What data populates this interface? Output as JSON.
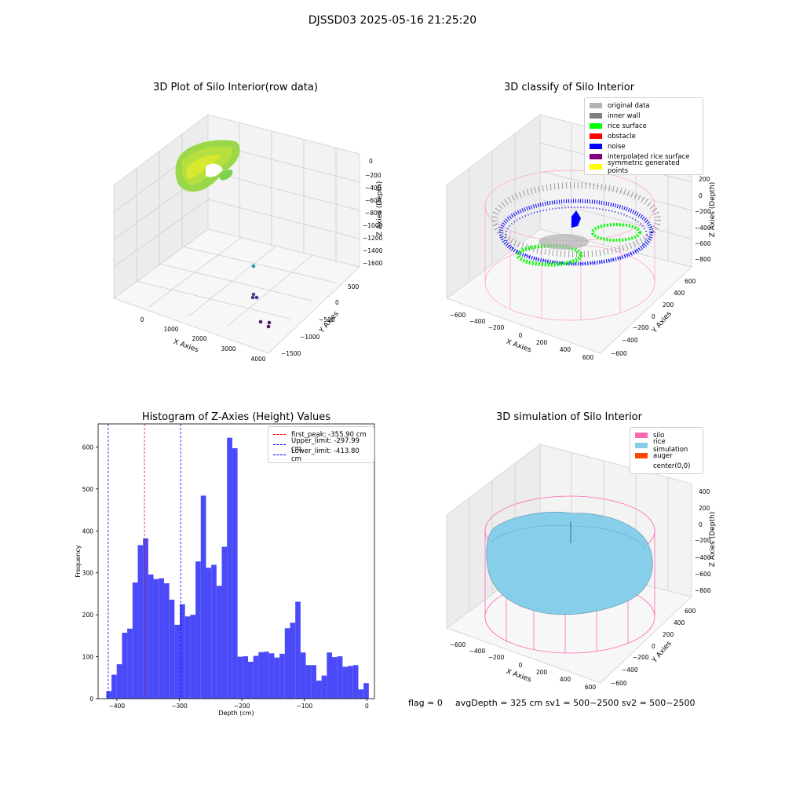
{
  "suptitle": "DJSSD03 2025-05-16 21:25:20",
  "panels": {
    "raw": {
      "title": "3D Plot of Silo Interior(row data)",
      "xlabel": "X Axies",
      "ylabel": "Y Axies",
      "zlabel": "Z Axies (Depth)",
      "xticks": [
        "0",
        "1000",
        "2000",
        "3000",
        "4000"
      ],
      "yticks": [
        "500",
        "0",
        "−500",
        "−1000",
        "−1500"
      ],
      "zticks": [
        "0",
        "−200",
        "−400",
        "−600",
        "−800",
        "−1000",
        "−1200",
        "−1400",
        "−1600"
      ]
    },
    "classify": {
      "title": "3D classify of Silo Interior",
      "xlabel": "X Axies",
      "ylabel": "Y Axies",
      "zlabel": "Z Axies (Depth)",
      "xticks": [
        "−600",
        "−400",
        "−200",
        "0",
        "200",
        "400",
        "600"
      ],
      "yticks": [
        "600",
        "400",
        "200",
        "0",
        "−200",
        "−400",
        "−600"
      ],
      "zticks": [
        "200",
        "0",
        "−200",
        "−400",
        "−600",
        "−800"
      ],
      "legend": [
        {
          "label": "original data",
          "color": "#b3b3b3"
        },
        {
          "label": "inner wall",
          "color": "#808080"
        },
        {
          "label": "rice surface",
          "color": "#00ff00"
        },
        {
          "label": "obstacle",
          "color": "#ff0000"
        },
        {
          "label": "noise",
          "color": "#0000ff"
        },
        {
          "label": "interpolated rice surface",
          "color": "#800080"
        },
        {
          "label": "symmetric generated points",
          "color": "#ffff00"
        }
      ]
    },
    "simulation": {
      "title": "3D simulation of Silo Interior",
      "xlabel": "X Axies",
      "ylabel": "Y Axies",
      "zlabel": "Z Axies (Depth)",
      "xticks": [
        "−600",
        "−400",
        "−200",
        "0",
        "200",
        "400",
        "600"
      ],
      "yticks": [
        "600",
        "400",
        "200",
        "0",
        "−200",
        "−400",
        "−600"
      ],
      "zticks": [
        "400",
        "200",
        "0",
        "−200",
        "−400",
        "−600",
        "−800"
      ],
      "legend": [
        {
          "label": "silo",
          "color": "#ff69b4"
        },
        {
          "label": "rice simulation",
          "color": "#87ceeb"
        },
        {
          "label": "auger",
          "color": "#ff4500"
        },
        {
          "label": "center(0,0)",
          "color": "#ffffff"
        }
      ]
    }
  },
  "footer": {
    "flag": "flag = 0",
    "info": "avgDepth = 325 cm  sv1 = 500~2500  sv2 = 500~2500"
  },
  "chart_data": {
    "type": "bar",
    "title": "Histogram of Z-Axies (Height) Values",
    "xlabel": "Depth (cm)",
    "ylabel": "Frequency",
    "xlim": [
      -430,
      12
    ],
    "ylim": [
      0,
      655
    ],
    "xticks": [
      -400,
      -300,
      -200,
      -100,
      0
    ],
    "xtick_labels": [
      "−400",
      "−300",
      "−200",
      "−100",
      "0"
    ],
    "yticks": [
      0,
      100,
      200,
      300,
      400,
      500,
      600
    ],
    "bin_start": -417,
    "bin_width": 8.4,
    "bar_color": "#4a4af8",
    "values": [
      18,
      57,
      82,
      157,
      167,
      277,
      366,
      382,
      296,
      285,
      287,
      275,
      236,
      176,
      225,
      196,
      200,
      327,
      484,
      312,
      319,
      269,
      362,
      622,
      597,
      100,
      101,
      88,
      102,
      111,
      112,
      108,
      98,
      107,
      168,
      181,
      231,
      110,
      80,
      80,
      43,
      55,
      110,
      99,
      101,
      76,
      78,
      80,
      22,
      37
    ],
    "vlines": [
      {
        "x": -355.9,
        "color": "#ff0000",
        "label": "first_peak: -355.90 cm"
      },
      {
        "x": -297.99,
        "color": "#0000ff",
        "label": "Upper_limit: -297.99 cm"
      },
      {
        "x": -413.8,
        "color": "#0000ff",
        "label": "Lower_limit: -413.80 cm"
      }
    ]
  }
}
